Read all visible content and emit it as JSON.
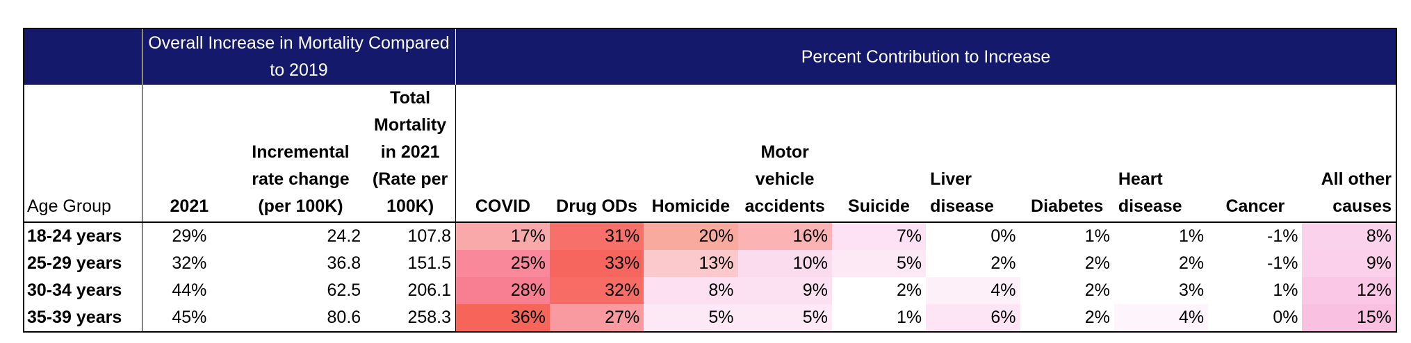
{
  "header": {
    "overall_title": "Overall Increase in Mortality Compared to 2019",
    "percent_title": "Percent Contribution to Increase"
  },
  "columns": {
    "age_group": "Age Group",
    "year_2021": "2021",
    "incremental": "Incremental rate change (per 100K)",
    "total": "Total Mortality in 2021 (Rate per 100K)",
    "causes": [
      "COVID",
      "Drug ODs",
      "Homicide",
      "Motor vehicle accidents",
      "Suicide",
      "Liver disease",
      "Diabetes",
      "Heart disease",
      "Cancer",
      "All other causes"
    ]
  },
  "rows": [
    {
      "age": "18-24 years",
      "pct2021": "29%",
      "incremental": "24.2",
      "total": "107.8",
      "causes": [
        "17%",
        "31%",
        "20%",
        "16%",
        "7%",
        "0%",
        "1%",
        "1%",
        "-1%",
        "8%"
      ]
    },
    {
      "age": "25-29 years",
      "pct2021": "32%",
      "incremental": "36.8",
      "total": "151.5",
      "causes": [
        "25%",
        "33%",
        "13%",
        "10%",
        "5%",
        "2%",
        "2%",
        "2%",
        "-1%",
        "9%"
      ]
    },
    {
      "age": "30-34 years",
      "pct2021": "44%",
      "incremental": "62.5",
      "total": "206.1",
      "causes": [
        "28%",
        "32%",
        "8%",
        "9%",
        "2%",
        "4%",
        "2%",
        "3%",
        "1%",
        "12%"
      ]
    },
    {
      "age": "35-39 years",
      "pct2021": "45%",
      "incremental": "80.6",
      "total": "258.3",
      "causes": [
        "36%",
        "27%",
        "5%",
        "5%",
        "1%",
        "6%",
        "2%",
        "4%",
        "0%",
        "15%"
      ]
    }
  ],
  "colors": {
    "header_bg": "#14196b",
    "heat": [
      [
        "#f9a9a9",
        "#f7706a",
        "#f9aa9e",
        "#fbb3b3",
        "#fce2f4",
        "#ffffff",
        "#ffffff",
        "#ffffff",
        "#ffffff",
        "#fad2ec"
      ],
      [
        "#f8889a",
        "#f7665e",
        "#fbc8cc",
        "#fbdcee",
        "#fde8f6",
        "#ffffff",
        "#ffffff",
        "#ffffff",
        "#ffffff",
        "#fbd0ea"
      ],
      [
        "#f87f92",
        "#f76d66",
        "#fde1f2",
        "#fce1f2",
        "#ffffff",
        "#fef0f9",
        "#ffffff",
        "#ffffff",
        "#ffffff",
        "#fac8e6"
      ],
      [
        "#f6655a",
        "#f89aa0",
        "#fde9f6",
        "#fde9f6",
        "#ffffff",
        "#fde5f6",
        "#ffffff",
        "#fef4fb",
        "#ffffff",
        "#f9c0e2"
      ]
    ]
  }
}
